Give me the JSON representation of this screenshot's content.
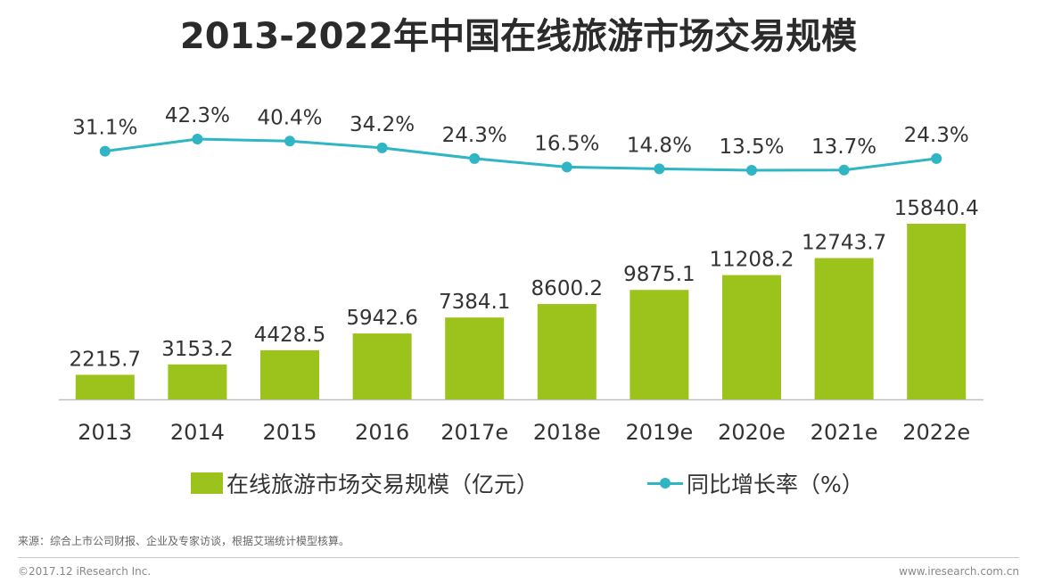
{
  "title": "2013-2022年中国在线旅游市场交易规模",
  "chart_data": {
    "type": "bar",
    "categories": [
      "2013",
      "2014",
      "2015",
      "2016",
      "2017e",
      "2018e",
      "2019e",
      "2020e",
      "2021e",
      "2022e"
    ],
    "series": [
      {
        "name": "在线旅游市场交易规模（亿元）",
        "type": "bar",
        "color": "#9bc31c",
        "values": [
          2215.7,
          3153.2,
          4428.5,
          5942.6,
          7384.1,
          8600.2,
          9875.1,
          11208.2,
          12743.7,
          15840.4
        ],
        "labels": [
          "2215.7",
          "3153.2",
          "4428.5",
          "5942.6",
          "7384.1",
          "8600.2",
          "9875.1",
          "11208.2",
          "12743.7",
          "15840.4"
        ]
      },
      {
        "name": "同比增长率（%）",
        "type": "line",
        "color": "#2fb5c3",
        "values": [
          31.1,
          42.3,
          40.4,
          34.2,
          24.3,
          16.5,
          14.8,
          13.5,
          13.7,
          24.3
        ],
        "labels": [
          "31.1%",
          "42.3%",
          "40.4%",
          "34.2%",
          "24.3%",
          "16.5%",
          "14.8%",
          "13.5%",
          "13.7%",
          "24.3%"
        ]
      }
    ],
    "legend_position": "bottom",
    "grid": false
  },
  "source_note": "来源：综合上市公司财报、企业及专家访谈，根据艾瑞统计模型核算。",
  "copyright": "©2017.12 iResearch Inc.",
  "website": "www.iresearch.com.cn"
}
